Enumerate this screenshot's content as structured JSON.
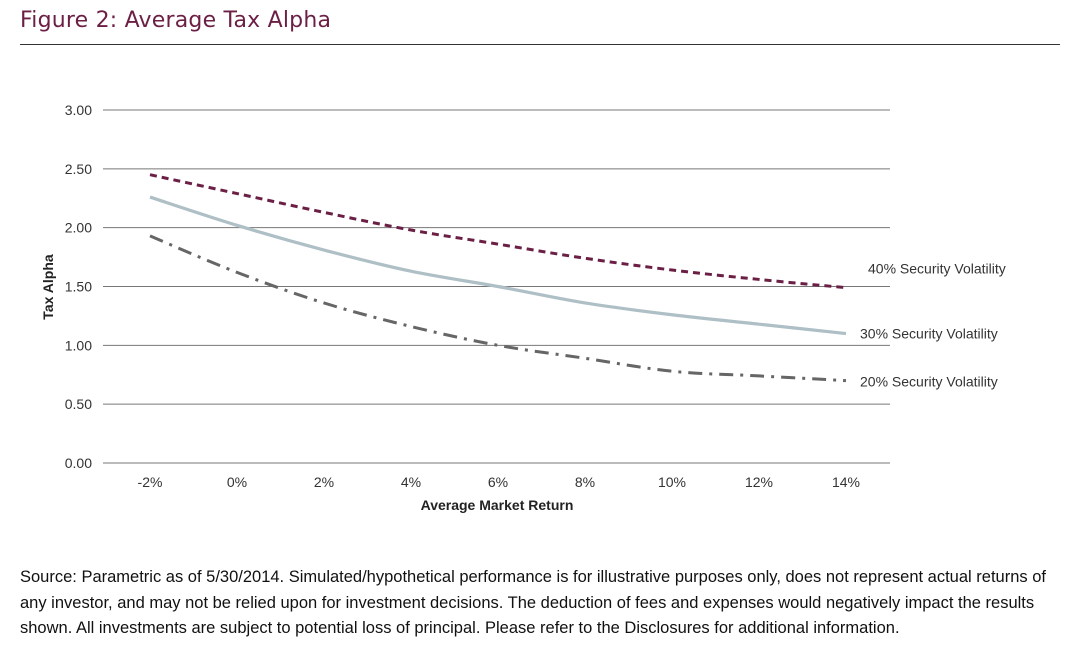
{
  "figure_title": "Figure 2: Average Tax Alpha",
  "source_note": "Source: Parametric as of 5/30/2014. Simulated/hypothetical performance is for illustrative purposes only, does not represent actual returns of any investor, and may not be relied upon for investment decisions. The deduction of fees and expenses would negatively impact the results shown. All investments are subject to potential loss of principal. Please refer to the Disclosures for additional information.",
  "colors": {
    "title": "#6b1f45",
    "grid": "#777777",
    "series_40": "#6b1f45",
    "series_30": "#aebfc6",
    "series_20": "#666666"
  },
  "chart_data": {
    "type": "line",
    "title": "",
    "xlabel": "Average Market Return",
    "ylabel": "Tax Alpha",
    "categories": [
      "-2%",
      "0%",
      "2%",
      "4%",
      "6%",
      "8%",
      "10%",
      "12%",
      "14%"
    ],
    "y_ticks": [
      "0.00",
      "0.50",
      "1.00",
      "1.50",
      "2.00",
      "2.50",
      "3.00"
    ],
    "ylim": [
      0,
      3
    ],
    "grid": true,
    "series": [
      {
        "name": "40% Security Volatility",
        "style": "dashed",
        "values": [
          2.45,
          2.29,
          2.13,
          1.98,
          1.86,
          1.74,
          1.64,
          1.56,
          1.49
        ]
      },
      {
        "name": "30% Security Volatility",
        "style": "solid",
        "values": [
          2.26,
          2.02,
          1.81,
          1.63,
          1.5,
          1.36,
          1.26,
          1.18,
          1.1
        ]
      },
      {
        "name": "20% Security Volatility",
        "style": "dash-dot",
        "values": [
          1.93,
          1.62,
          1.36,
          1.16,
          1.0,
          0.89,
          0.78,
          0.74,
          0.7
        ]
      }
    ]
  }
}
